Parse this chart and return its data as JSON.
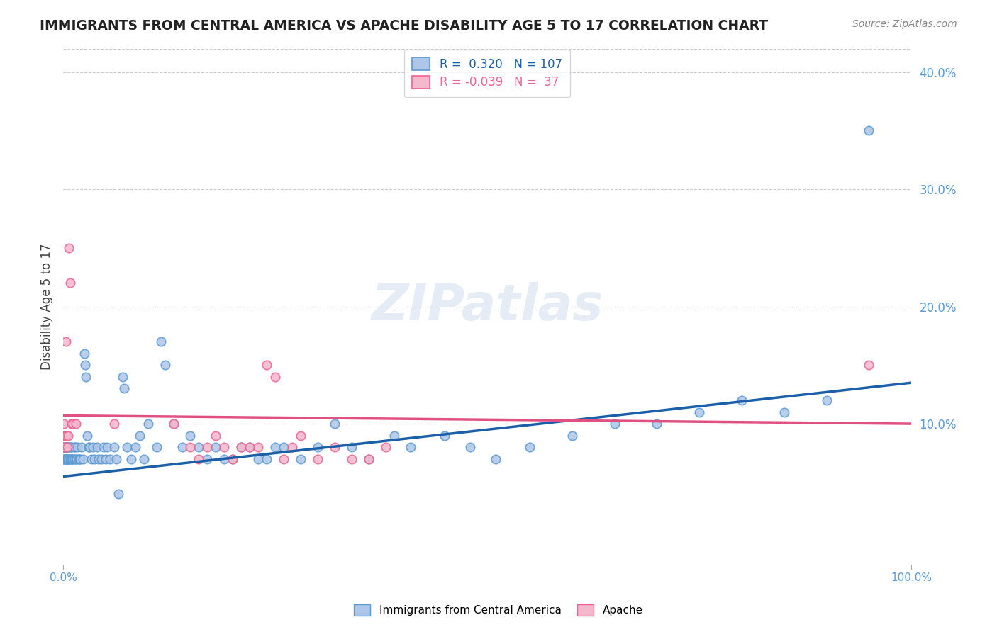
{
  "title": "IMMIGRANTS FROM CENTRAL AMERICA VS APACHE DISABILITY AGE 5 TO 17 CORRELATION CHART",
  "source_text": "Source: ZipAtlas.com",
  "xlabel": "",
  "ylabel": "Disability Age 5 to 17",
  "xlim": [
    0.0,
    1.0
  ],
  "ylim": [
    -0.02,
    0.42
  ],
  "x_tick_labels": [
    "0.0%",
    "100.0%"
  ],
  "y_tick_labels": [
    "10.0%",
    "20.0%",
    "30.0%",
    "40.0%"
  ],
  "y_tick_values": [
    0.1,
    0.2,
    0.3,
    0.4
  ],
  "grid_color": "#cccccc",
  "bg_color": "#ffffff",
  "watermark_text": "ZIPatlas",
  "legend_r1": "R =  0.320",
  "legend_n1": "N = 107",
  "legend_r2": "R = -0.039",
  "legend_n2": "N =  37",
  "blue_color": "#5b9bd5",
  "blue_face": "#aec6e8",
  "pink_color": "#f06292",
  "pink_face": "#f4b8cc",
  "trendline_blue": "#1a5fa8",
  "trendline_pink": "#e05080",
  "blue_scatter_x": [
    0.0,
    0.001,
    0.001,
    0.001,
    0.001,
    0.002,
    0.002,
    0.002,
    0.002,
    0.003,
    0.003,
    0.003,
    0.003,
    0.003,
    0.004,
    0.004,
    0.004,
    0.005,
    0.005,
    0.005,
    0.006,
    0.006,
    0.006,
    0.007,
    0.007,
    0.008,
    0.008,
    0.009,
    0.009,
    0.01,
    0.01,
    0.011,
    0.012,
    0.013,
    0.013,
    0.014,
    0.015,
    0.016,
    0.017,
    0.018,
    0.019,
    0.02,
    0.022,
    0.023,
    0.025,
    0.026,
    0.027,
    0.028,
    0.03,
    0.031,
    0.033,
    0.035,
    0.037,
    0.04,
    0.042,
    0.045,
    0.048,
    0.05,
    0.052,
    0.055,
    0.06,
    0.063,
    0.065,
    0.07,
    0.072,
    0.075,
    0.08,
    0.085,
    0.09,
    0.095,
    0.1,
    0.11,
    0.115,
    0.12,
    0.13,
    0.14,
    0.15,
    0.16,
    0.17,
    0.18,
    0.19,
    0.2,
    0.21,
    0.22,
    0.23,
    0.24,
    0.25,
    0.26,
    0.28,
    0.3,
    0.32,
    0.34,
    0.36,
    0.39,
    0.41,
    0.45,
    0.48,
    0.51,
    0.55,
    0.6,
    0.65,
    0.7,
    0.75,
    0.8,
    0.85,
    0.9,
    0.95
  ],
  "blue_scatter_y": [
    0.07,
    0.08,
    0.08,
    0.09,
    0.07,
    0.08,
    0.08,
    0.09,
    0.07,
    0.08,
    0.07,
    0.08,
    0.07,
    0.08,
    0.07,
    0.08,
    0.08,
    0.07,
    0.08,
    0.07,
    0.07,
    0.08,
    0.07,
    0.07,
    0.08,
    0.07,
    0.08,
    0.07,
    0.08,
    0.07,
    0.08,
    0.07,
    0.07,
    0.07,
    0.08,
    0.08,
    0.07,
    0.07,
    0.08,
    0.07,
    0.07,
    0.07,
    0.08,
    0.07,
    0.16,
    0.15,
    0.14,
    0.09,
    0.08,
    0.08,
    0.07,
    0.08,
    0.07,
    0.08,
    0.07,
    0.07,
    0.08,
    0.07,
    0.08,
    0.07,
    0.08,
    0.07,
    0.04,
    0.14,
    0.13,
    0.08,
    0.07,
    0.08,
    0.09,
    0.07,
    0.1,
    0.08,
    0.17,
    0.15,
    0.1,
    0.08,
    0.09,
    0.08,
    0.07,
    0.08,
    0.07,
    0.07,
    0.08,
    0.08,
    0.07,
    0.07,
    0.08,
    0.08,
    0.07,
    0.08,
    0.1,
    0.08,
    0.07,
    0.09,
    0.08,
    0.09,
    0.08,
    0.07,
    0.08,
    0.09,
    0.1,
    0.1,
    0.11,
    0.12,
    0.11,
    0.12,
    0.35
  ],
  "pink_scatter_x": [
    0.0,
    0.001,
    0.001,
    0.002,
    0.002,
    0.003,
    0.003,
    0.004,
    0.005,
    0.006,
    0.007,
    0.008,
    0.01,
    0.012,
    0.015,
    0.06,
    0.13,
    0.15,
    0.16,
    0.17,
    0.18,
    0.19,
    0.2,
    0.21,
    0.22,
    0.23,
    0.24,
    0.25,
    0.26,
    0.27,
    0.28,
    0.3,
    0.32,
    0.34,
    0.36,
    0.38,
    0.95
  ],
  "pink_scatter_y": [
    0.08,
    0.09,
    0.1,
    0.09,
    0.08,
    0.09,
    0.17,
    0.09,
    0.08,
    0.09,
    0.25,
    0.22,
    0.1,
    0.1,
    0.1,
    0.1,
    0.1,
    0.08,
    0.07,
    0.08,
    0.09,
    0.08,
    0.07,
    0.08,
    0.08,
    0.08,
    0.15,
    0.14,
    0.07,
    0.08,
    0.09,
    0.07,
    0.08,
    0.07,
    0.07,
    0.08,
    0.15
  ],
  "blue_trend_x": [
    0.0,
    1.0
  ],
  "blue_trend_y": [
    0.055,
    0.135
  ],
  "pink_trend_x": [
    0.0,
    1.0
  ],
  "pink_trend_y": [
    0.107,
    0.1
  ],
  "legend_box_color": "#f0f0f0",
  "legend_box_edge": "#cccccc",
  "title_color": "#222222",
  "axis_label_color": "#444444",
  "tick_label_color_blue": "#5b9bd5",
  "tick_label_color_pink": "#e05080",
  "bottom_legend_blue": "Immigrants from Central America",
  "bottom_legend_pink": "Apache"
}
